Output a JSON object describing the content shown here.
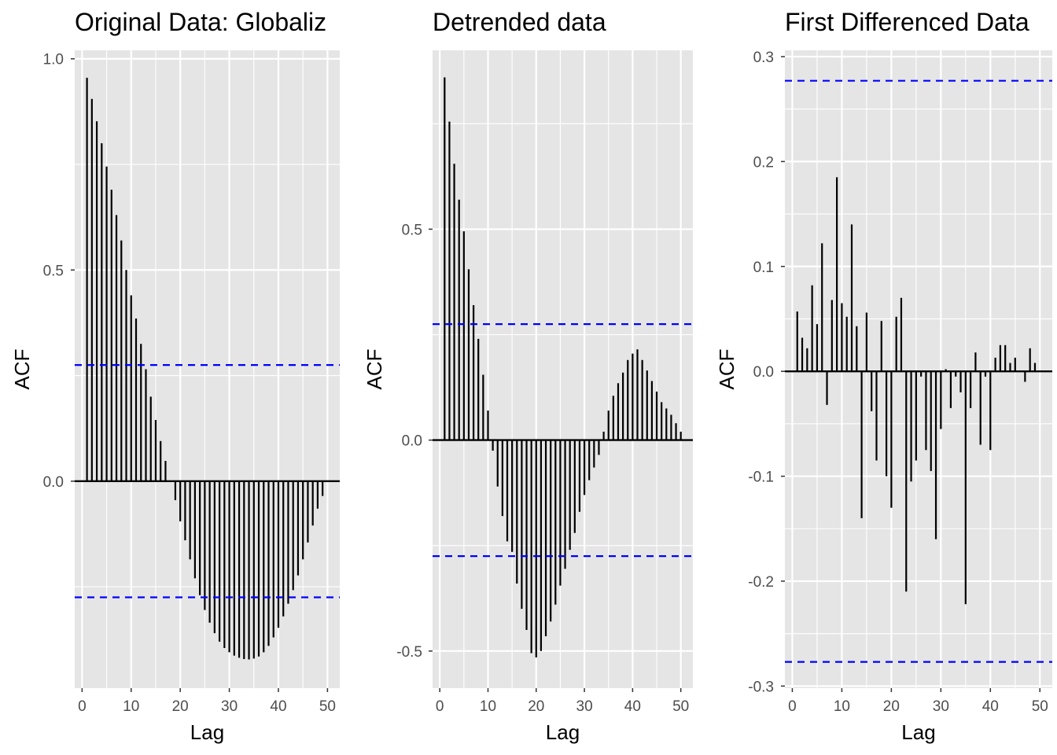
{
  "colors": {
    "panel_background": "#e5e5e5",
    "grid": "#ffffff",
    "bars": "#000000",
    "confidence_band": "#0000ff",
    "tick_text": "#4d4d4d",
    "text": "#000000"
  },
  "chart_data": [
    {
      "type": "bar",
      "subtype": "acf-lollipop",
      "title": "Original Data: Globaliz",
      "xlabel": "Lag",
      "ylabel": "ACF",
      "xlim": [
        -1.5,
        52.5
      ],
      "ylim": [
        -0.49,
        1.02
      ],
      "xticks": [
        0,
        10,
        20,
        30,
        40,
        50
      ],
      "xtick_labels": [
        "0",
        "10",
        "20",
        "30",
        "40",
        "50"
      ],
      "yticks": [
        0.0,
        0.5,
        1.0
      ],
      "ytick_labels": [
        "0.0",
        "0.5",
        "1.0"
      ],
      "grid": true,
      "confidence_bounds": [
        0.275,
        -0.275
      ],
      "x": [
        1,
        2,
        3,
        4,
        5,
        6,
        7,
        8,
        9,
        10,
        11,
        12,
        13,
        14,
        15,
        16,
        17,
        18,
        19,
        20,
        21,
        22,
        23,
        24,
        25,
        26,
        27,
        28,
        29,
        30,
        31,
        32,
        33,
        34,
        35,
        36,
        37,
        38,
        39,
        40,
        41,
        42,
        43,
        44,
        45,
        46,
        47,
        48,
        49,
        50,
        51
      ],
      "values": [
        0.955,
        0.905,
        0.852,
        0.8,
        0.745,
        0.69,
        0.63,
        0.57,
        0.5,
        0.44,
        0.385,
        0.325,
        0.265,
        0.2,
        0.145,
        0.095,
        0.048,
        0.0,
        -0.045,
        -0.095,
        -0.14,
        -0.185,
        -0.23,
        -0.27,
        -0.305,
        -0.335,
        -0.36,
        -0.38,
        -0.395,
        -0.405,
        -0.413,
        -0.418,
        -0.421,
        -0.422,
        -0.42,
        -0.415,
        -0.405,
        -0.39,
        -0.37,
        -0.347,
        -0.32,
        -0.29,
        -0.258,
        -0.223,
        -0.185,
        -0.145,
        -0.105,
        -0.065,
        -0.035,
        0.0,
        0.0
      ]
    },
    {
      "type": "bar",
      "subtype": "acf-lollipop",
      "title": "Detrended data",
      "xlabel": "Lag",
      "ylabel": "ACF",
      "xlim": [
        -1.5,
        52.5
      ],
      "ylim": [
        -0.588,
        0.924
      ],
      "xticks": [
        0,
        10,
        20,
        30,
        40,
        50
      ],
      "xtick_labels": [
        "0",
        "10",
        "20",
        "30",
        "40",
        "50"
      ],
      "yticks": [
        -0.5,
        0.0,
        0.5
      ],
      "ytick_labels": [
        "-0.5",
        "0.0",
        "0.5"
      ],
      "grid": true,
      "confidence_bounds": [
        0.275,
        -0.275
      ],
      "x": [
        1,
        2,
        3,
        4,
        5,
        6,
        7,
        8,
        9,
        10,
        11,
        12,
        13,
        14,
        15,
        16,
        17,
        18,
        19,
        20,
        21,
        22,
        23,
        24,
        25,
        26,
        27,
        28,
        29,
        30,
        31,
        32,
        33,
        34,
        35,
        36,
        37,
        38,
        39,
        40,
        41,
        42,
        43,
        44,
        45,
        46,
        47,
        48,
        49,
        50
      ],
      "values": [
        0.86,
        0.755,
        0.655,
        0.57,
        0.495,
        0.405,
        0.32,
        0.24,
        0.155,
        0.07,
        -0.025,
        -0.11,
        -0.18,
        -0.24,
        -0.265,
        -0.34,
        -0.4,
        -0.45,
        -0.505,
        -0.515,
        -0.5,
        -0.465,
        -0.43,
        -0.39,
        -0.345,
        -0.305,
        -0.26,
        -0.22,
        -0.17,
        -0.13,
        -0.095,
        -0.065,
        -0.035,
        0.02,
        0.07,
        0.105,
        0.135,
        0.16,
        0.19,
        0.205,
        0.215,
        0.19,
        0.165,
        0.14,
        0.115,
        0.09,
        0.075,
        0.06,
        0.04,
        0.02
      ]
    },
    {
      "type": "bar",
      "subtype": "acf-lollipop",
      "title": "First Differenced Data",
      "xlabel": "Lag",
      "ylabel": "ACF",
      "xlim": [
        -1.5,
        52.5
      ],
      "ylim": [
        -0.302,
        0.306
      ],
      "xticks": [
        0,
        10,
        20,
        30,
        40,
        50
      ],
      "xtick_labels": [
        "0",
        "10",
        "20",
        "30",
        "40",
        "50"
      ],
      "yticks": [
        -0.3,
        -0.2,
        -0.1,
        0.0,
        0.1,
        0.2,
        0.3
      ],
      "ytick_labels": [
        "-0.3",
        "-0.2",
        "-0.1",
        "0.0",
        "0.1",
        "0.2",
        "0.3"
      ],
      "grid": true,
      "confidence_bounds": [
        0.277,
        -0.277
      ],
      "x": [
        1,
        2,
        3,
        4,
        5,
        6,
        7,
        8,
        9,
        10,
        11,
        12,
        13,
        14,
        15,
        16,
        17,
        18,
        19,
        20,
        21,
        22,
        23,
        24,
        25,
        26,
        27,
        28,
        29,
        30,
        31,
        32,
        33,
        34,
        35,
        36,
        37,
        38,
        39,
        40,
        41,
        42,
        43,
        44,
        45,
        46,
        47,
        48,
        49
      ],
      "values": [
        0.057,
        0.032,
        0.022,
        0.082,
        0.045,
        0.122,
        -0.032,
        0.068,
        0.185,
        0.065,
        0.052,
        0.14,
        0.043,
        -0.14,
        0.056,
        -0.038,
        -0.085,
        0.048,
        -0.1,
        -0.13,
        0.052,
        0.07,
        -0.21,
        -0.105,
        -0.085,
        -0.005,
        -0.075,
        -0.095,
        -0.16,
        -0.055,
        0.002,
        -0.035,
        -0.005,
        -0.02,
        -0.222,
        -0.035,
        0.018,
        -0.07,
        -0.005,
        -0.075,
        0.013,
        0.025,
        0.025,
        0.008,
        0.013,
        0.0,
        -0.01,
        0.022,
        0.008
      ]
    }
  ]
}
